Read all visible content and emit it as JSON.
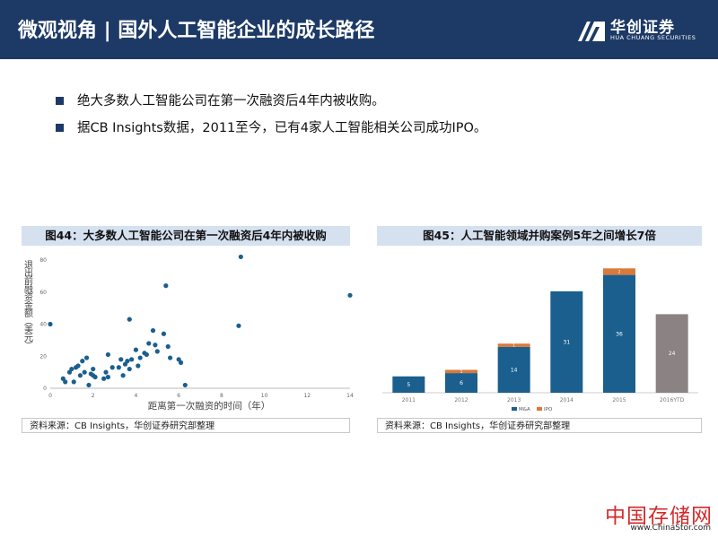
{
  "header": {
    "title": "微观视角 | 国外人工智能企业的成长路径",
    "logo_cn": "华创证券",
    "logo_en": "HUA CHUANG SECURITIES"
  },
  "bullets": [
    "绝大多数人工智能公司在第一次融资后4年内被收购。",
    "据CB Insights数据，2011至今，已有4家人工智能相关公司成功IPO。"
  ],
  "left_panel": {
    "title": "图44：大多数人工智能公司在第一次融资后4年内被收购",
    "source": "资料来源：CB Insights，华创证券研究部整理"
  },
  "right_panel": {
    "title": "图45：人工智能领域并购案例5年之间增长7倍",
    "source": "资料来源：CB Insights，华创证券研究部整理"
  },
  "watermark": {
    "cn": "中国存储网",
    "url": "www.ChinaStor.com"
  },
  "chart_data": [
    {
      "type": "scatter",
      "xlabel": "距离第一次融资的时间（年）",
      "ylabel": "退出前融资金额（美元）",
      "xlim": [
        0,
        14
      ],
      "ylim": [
        0,
        80
      ],
      "x_ticks": [
        "0",
        "2",
        "4",
        "6",
        "8",
        "10",
        "12",
        "14"
      ],
      "y_ticks": [
        "0",
        "20",
        "40",
        "60",
        "80"
      ],
      "grid": false,
      "color": "#1a5f8e",
      "points": [
        [
          0.0,
          40
        ],
        [
          0.6,
          6
        ],
        [
          0.7,
          4
        ],
        [
          0.9,
          10
        ],
        [
          1.0,
          12
        ],
        [
          1.1,
          4
        ],
        [
          1.2,
          13
        ],
        [
          1.3,
          14
        ],
        [
          1.4,
          8
        ],
        [
          1.5,
          17
        ],
        [
          1.6,
          10
        ],
        [
          1.7,
          19
        ],
        [
          1.8,
          2
        ],
        [
          1.9,
          9
        ],
        [
          2.0,
          12
        ],
        [
          2.0,
          8
        ],
        [
          2.1,
          7
        ],
        [
          2.5,
          6
        ],
        [
          2.6,
          10
        ],
        [
          2.7,
          7
        ],
        [
          2.7,
          21
        ],
        [
          2.9,
          13
        ],
        [
          3.2,
          13
        ],
        [
          3.3,
          18
        ],
        [
          3.4,
          8
        ],
        [
          3.5,
          15
        ],
        [
          3.6,
          17
        ],
        [
          3.7,
          12
        ],
        [
          3.7,
          43
        ],
        [
          3.8,
          18
        ],
        [
          4.0,
          24
        ],
        [
          4.1,
          14
        ],
        [
          4.2,
          19
        ],
        [
          4.4,
          22
        ],
        [
          4.5,
          21
        ],
        [
          4.6,
          28
        ],
        [
          4.8,
          36
        ],
        [
          4.9,
          27
        ],
        [
          5.0,
          23
        ],
        [
          5.3,
          34
        ],
        [
          5.4,
          64
        ],
        [
          5.5,
          26
        ],
        [
          5.6,
          19
        ],
        [
          6.0,
          18
        ],
        [
          6.1,
          16
        ],
        [
          6.3,
          2
        ],
        [
          8.8,
          39
        ],
        [
          8.9,
          82
        ],
        [
          14.0,
          58
        ]
      ]
    },
    {
      "type": "bar",
      "stacked": true,
      "categories": [
        "2011",
        "2012",
        "2013",
        "2014",
        "2015",
        "2016YTD"
      ],
      "series": [
        {
          "name": "M&A",
          "values": [
            5,
            6,
            14,
            31,
            36,
            null
          ],
          "color": "#1a5f8e"
        },
        {
          "name": "IPO",
          "values": [
            0,
            1,
            1,
            0,
            2,
            null
          ],
          "color": "#d9793a"
        }
      ],
      "ytd_total": 24,
      "ytd_color": "#8a8283",
      "data_labels": {
        "M&A": [
          "5",
          "6",
          "14",
          "31",
          "36",
          ""
        ],
        "IPO": [
          "",
          "1",
          "1",
          "",
          "2",
          ""
        ],
        "ytd": "24"
      },
      "ylim": [
        0,
        40
      ],
      "legend": "bottom",
      "grid": false
    }
  ]
}
